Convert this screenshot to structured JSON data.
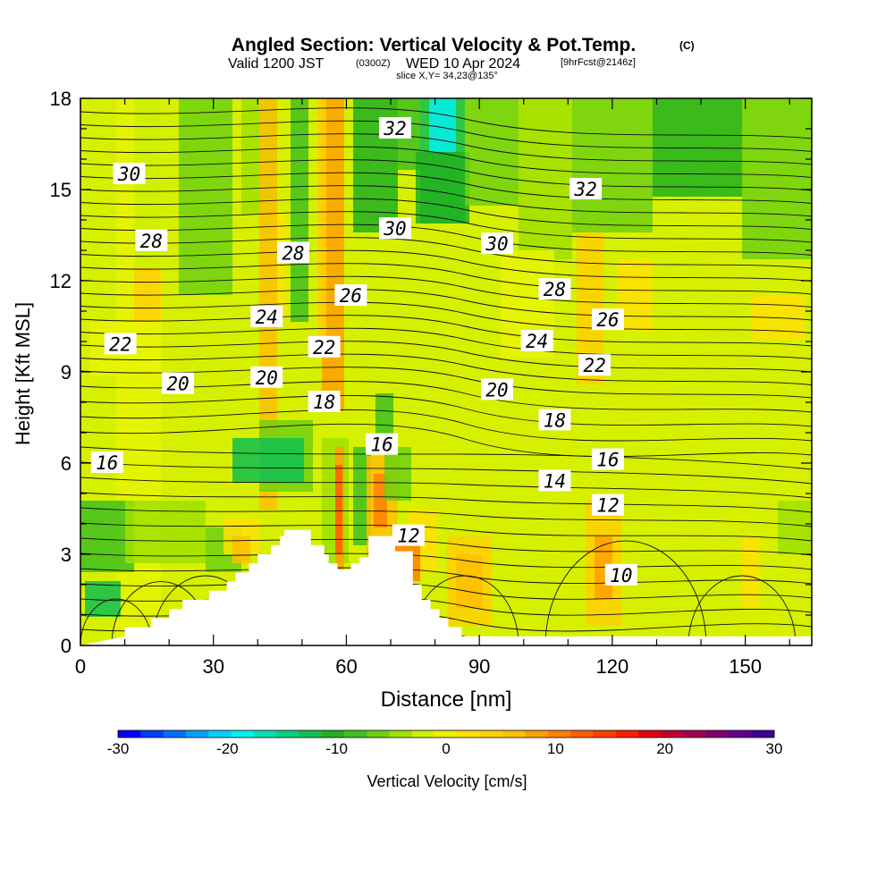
{
  "header": {
    "title": "Angled Section: Vertical Velocity & Pot.Temp.",
    "title_mark": "(C)",
    "valid_prefix": "Valid 1200 JST",
    "valid_z": "(0300Z)",
    "valid_date": "WED 10 Apr 2024",
    "forecast": "[9hrFcst@2146z]",
    "slice": "slice X,Y= 34,23@135°"
  },
  "colorbar": {
    "label": "Vertical Velocity [cm/s]",
    "ticks": [
      "-30",
      "-20",
      "-10",
      "0",
      "10",
      "20",
      "30"
    ],
    "colors": [
      "#0000ff",
      "#0040ff",
      "#0070ff",
      "#00a0ff",
      "#00d0ff",
      "#00f0f0",
      "#00e0b0",
      "#00d080",
      "#10c050",
      "#20b020",
      "#40c020",
      "#70d010",
      "#a0e000",
      "#d0f000",
      "#f0f000",
      "#ffe000",
      "#ffd000",
      "#ffc000",
      "#ffa000",
      "#ff8000",
      "#ff6000",
      "#ff4000",
      "#ff2000",
      "#e00010",
      "#c00030",
      "#a00050",
      "#800070",
      "#600090",
      "#400098"
    ]
  },
  "chart_data": {
    "type": "heatmap",
    "title": "Angled Section: Vertical Velocity & Pot.Temp.",
    "xlabel": "Distance [nm]",
    "ylabel": "Height [Kft MSL]",
    "xlim": [
      0,
      165
    ],
    "ylim": [
      0,
      18
    ],
    "xticks": [
      "0",
      "30",
      "60",
      "90",
      "120",
      "150"
    ],
    "yticks": [
      "0",
      "3",
      "6",
      "9",
      "12",
      "15",
      "18"
    ],
    "terrain": [
      [
        0,
        0
      ],
      [
        10,
        0.3
      ],
      [
        10,
        0.6
      ],
      [
        16,
        0.6
      ],
      [
        16,
        0.9
      ],
      [
        20,
        0.9
      ],
      [
        20,
        1.2
      ],
      [
        23,
        1.2
      ],
      [
        23,
        1.5
      ],
      [
        29,
        1.5
      ],
      [
        29,
        1.8
      ],
      [
        33,
        1.8
      ],
      [
        33,
        2.1
      ],
      [
        35,
        2.1
      ],
      [
        35,
        2.4
      ],
      [
        38,
        2.4
      ],
      [
        38,
        2.7
      ],
      [
        40,
        2.7
      ],
      [
        40,
        3.0
      ],
      [
        43,
        3.0
      ],
      [
        43,
        3.3
      ],
      [
        45,
        3.3
      ],
      [
        45,
        3.6
      ],
      [
        46,
        3.6
      ],
      [
        46,
        3.8
      ],
      [
        52,
        3.8
      ],
      [
        52,
        3.3
      ],
      [
        55,
        3.3
      ],
      [
        55,
        3.0
      ],
      [
        56,
        3.0
      ],
      [
        56,
        2.7
      ],
      [
        58,
        2.7
      ],
      [
        58,
        2.5
      ],
      [
        61,
        2.5
      ],
      [
        61,
        2.7
      ],
      [
        63,
        2.7
      ],
      [
        63,
        2.9
      ],
      [
        65,
        2.9
      ],
      [
        65,
        3.6
      ],
      [
        71,
        3.6
      ],
      [
        71,
        3.1
      ],
      [
        75,
        3.1
      ],
      [
        75,
        2.0
      ],
      [
        77,
        2.0
      ],
      [
        77,
        1.5
      ],
      [
        79,
        1.5
      ],
      [
        79,
        1.2
      ],
      [
        81,
        1.2
      ],
      [
        81,
        0.9
      ],
      [
        83,
        0.9
      ],
      [
        83,
        0.6
      ],
      [
        86,
        0.6
      ],
      [
        86,
        0.3
      ],
      [
        165,
        0.3
      ],
      [
        165,
        0
      ]
    ],
    "contour_labels": [
      {
        "text": "30",
        "x": 11,
        "y": 15.5
      },
      {
        "text": "32",
        "x": 71,
        "y": 17.0
      },
      {
        "text": "32",
        "x": 114,
        "y": 15.0
      },
      {
        "text": "28",
        "x": 16,
        "y": 13.3
      },
      {
        "text": "28",
        "x": 48,
        "y": 12.9
      },
      {
        "text": "30",
        "x": 71,
        "y": 13.7
      },
      {
        "text": "30",
        "x": 94,
        "y": 13.2
      },
      {
        "text": "26",
        "x": 61,
        "y": 11.5
      },
      {
        "text": "28",
        "x": 107,
        "y": 11.7
      },
      {
        "text": "24",
        "x": 42,
        "y": 10.8
      },
      {
        "text": "26",
        "x": 119,
        "y": 10.7
      },
      {
        "text": "22",
        "x": 9,
        "y": 9.9
      },
      {
        "text": "22",
        "x": 55,
        "y": 9.8
      },
      {
        "text": "24",
        "x": 103,
        "y": 10.0
      },
      {
        "text": "22",
        "x": 116,
        "y": 9.2
      },
      {
        "text": "20",
        "x": 22,
        "y": 8.6
      },
      {
        "text": "20",
        "x": 42,
        "y": 8.8
      },
      {
        "text": "20",
        "x": 94,
        "y": 8.4
      },
      {
        "text": "18",
        "x": 55,
        "y": 8.0
      },
      {
        "text": "18",
        "x": 107,
        "y": 7.4
      },
      {
        "text": "16",
        "x": 68,
        "y": 6.6
      },
      {
        "text": "16",
        "x": 6,
        "y": 6.0
      },
      {
        "text": "16",
        "x": 119,
        "y": 6.1
      },
      {
        "text": "14",
        "x": 107,
        "y": 5.4
      },
      {
        "text": "12",
        "x": 119,
        "y": 4.6
      },
      {
        "text": "12",
        "x": 74,
        "y": 3.6
      },
      {
        "text": "10",
        "x": 122,
        "y": 2.3
      }
    ]
  }
}
